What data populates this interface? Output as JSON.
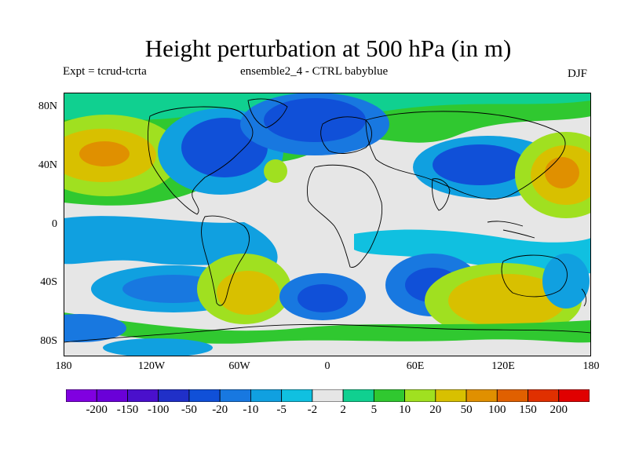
{
  "header": {
    "title": "Height perturbation at 500 hPa (in m)",
    "experiment": "Expt = tcrud-tcrta",
    "run": "ensemble2_4 - CTRL babyblue",
    "season": "DJF"
  },
  "axes": {
    "lat_labels": [
      "80N",
      "40N",
      "0",
      "40S",
      "80S"
    ],
    "lon_labels": [
      "180",
      "120W",
      "60W",
      "0",
      "60E",
      "120E",
      "180"
    ]
  },
  "colorbar": {
    "labels": [
      "-200",
      "-150",
      "-100",
      "-50",
      "-20",
      "-10",
      "-5",
      "-2",
      "2",
      "5",
      "10",
      "20",
      "50",
      "100",
      "150",
      "200"
    ],
    "colors": [
      "#8000e0",
      "#6a00d8",
      "#4a10cc",
      "#2030c8",
      "#1050d8",
      "#1878e0",
      "#10a0e0",
      "#10c0e0",
      "#e6e6e6",
      "#10d090",
      "#30c830",
      "#a0e020",
      "#d8c000",
      "#e09000",
      "#e06000",
      "#e03000",
      "#e00000"
    ]
  },
  "colors": {
    "land_outline": "#000000",
    "near_zero": "#e6e6e6"
  }
}
